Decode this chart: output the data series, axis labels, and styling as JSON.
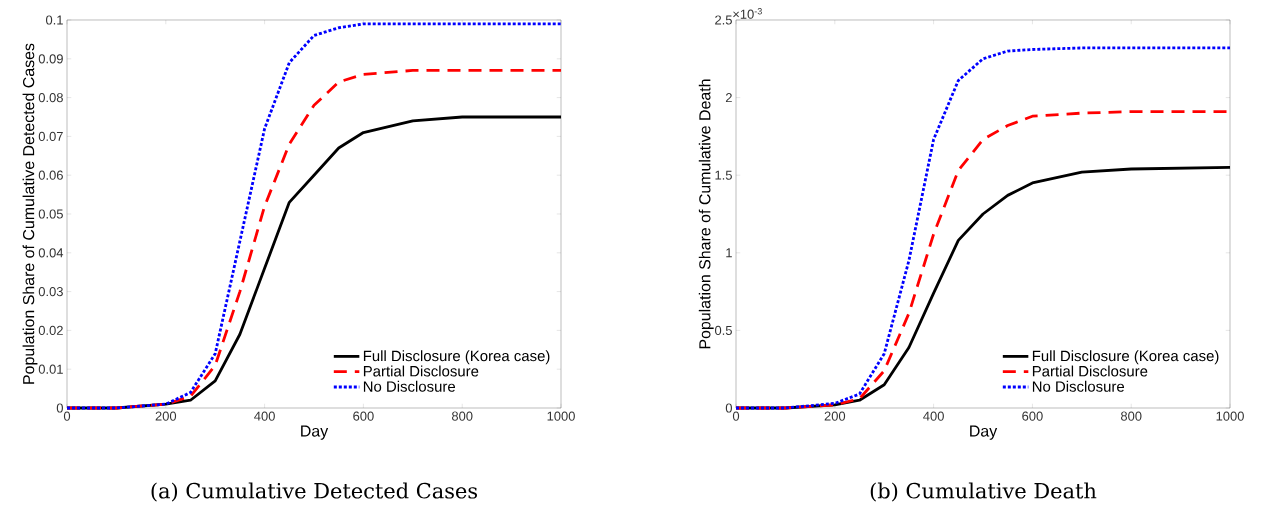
{
  "chart_data": [
    {
      "type": "line",
      "title": "(a) Cumulative Detected Cases",
      "xlabel": "Day",
      "ylabel": "Population Share of Cumulative Detected Cases",
      "x": [
        0,
        100,
        200,
        250,
        300,
        350,
        400,
        450,
        500,
        550,
        600,
        700,
        800,
        1000
      ],
      "xlim": [
        0,
        1000
      ],
      "xticks": [
        0,
        200,
        400,
        600,
        800,
        1000
      ],
      "ylim": [
        0,
        0.1
      ],
      "yticks": [
        0,
        0.01,
        0.02,
        0.03,
        0.04,
        0.05,
        0.06,
        0.07,
        0.08,
        0.09,
        0.1
      ],
      "legend": "bottom right",
      "grid": false,
      "series": [
        {
          "name": "Full Disclosure (Korea case)",
          "color": "#000000",
          "line_style": "solid",
          "values": [
            0,
            0,
            0.001,
            0.002,
            0.007,
            0.019,
            0.036,
            0.053,
            0.06,
            0.067,
            0.071,
            0.074,
            0.075,
            0.075
          ]
        },
        {
          "name": "Partial Disclosure",
          "color": "#ff0000",
          "line_style": "dashed",
          "values": [
            0,
            0,
            0.001,
            0.003,
            0.011,
            0.03,
            0.052,
            0.068,
            0.078,
            0.084,
            0.086,
            0.087,
            0.087,
            0.087
          ]
        },
        {
          "name": "No Disclosure",
          "color": "#0000ff",
          "line_style": "dotted",
          "values": [
            0,
            0,
            0.001,
            0.004,
            0.014,
            0.043,
            0.072,
            0.089,
            0.096,
            0.098,
            0.099,
            0.099,
            0.099,
            0.099
          ]
        }
      ]
    },
    {
      "type": "line",
      "title": "(b) Cumulative Death",
      "xlabel": "Day",
      "ylabel": "Population Share of Cumulative Death",
      "annotations": [
        "×10$^{-3}$"
      ],
      "x": [
        0,
        100,
        200,
        250,
        300,
        350,
        400,
        450,
        500,
        550,
        600,
        700,
        800,
        1000
      ],
      "xlim": [
        0,
        1000
      ],
      "xticks": [
        0,
        200,
        400,
        600,
        800,
        1000
      ],
      "ylim": [
        0,
        2.5
      ],
      "yticks": [
        0,
        0.5,
        1,
        1.5,
        2,
        2.5
      ],
      "legend": "bottom right",
      "grid": false,
      "series": [
        {
          "name": "Full Disclosure (Korea case)",
          "color": "#000000",
          "line_style": "solid",
          "values": [
            0,
            0,
            0.02,
            0.05,
            0.15,
            0.39,
            0.74,
            1.08,
            1.25,
            1.37,
            1.45,
            1.52,
            1.54,
            1.55
          ]
        },
        {
          "name": "Partial Disclosure",
          "color": "#ff0000",
          "line_style": "dashed",
          "values": [
            0,
            0,
            0.02,
            0.06,
            0.24,
            0.61,
            1.12,
            1.53,
            1.73,
            1.82,
            1.88,
            1.9,
            1.91,
            1.91
          ]
        },
        {
          "name": "No Disclosure",
          "color": "#0000ff",
          "line_style": "dotted",
          "values": [
            0,
            0,
            0.03,
            0.09,
            0.35,
            0.95,
            1.73,
            2.11,
            2.25,
            2.3,
            2.31,
            2.32,
            2.32,
            2.32
          ]
        }
      ]
    }
  ]
}
